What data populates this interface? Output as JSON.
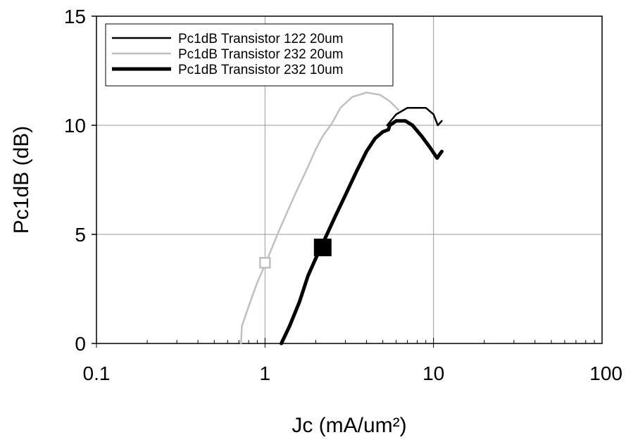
{
  "chart_data": {
    "type": "line",
    "xlabel": "Jc (mA/um²)",
    "ylabel": "Pc1dB (dB)",
    "x_scale": "log",
    "xlim": [
      0.1,
      100
    ],
    "ylim": [
      0,
      15
    ],
    "x_ticks": [
      {
        "value": 0.1,
        "label": "0.1"
      },
      {
        "value": 1,
        "label": "1"
      },
      {
        "value": 10,
        "label": "10"
      },
      {
        "value": 100,
        "label": "100"
      }
    ],
    "y_ticks": [
      {
        "value": 0,
        "label": "0"
      },
      {
        "value": 5,
        "label": "5"
      },
      {
        "value": 10,
        "label": "10"
      },
      {
        "value": 15,
        "label": "15"
      }
    ],
    "grid": true,
    "legend_position": "top-left",
    "series": [
      {
        "name": "Pc1dB Transistor 122 20um",
        "color": "#000000",
        "style": "thin",
        "points": [
          [
            5.3,
            10.0
          ],
          [
            6.0,
            10.5
          ],
          [
            7.0,
            10.8
          ],
          [
            8.0,
            10.8
          ],
          [
            9.0,
            10.8
          ],
          [
            10.0,
            10.5
          ],
          [
            10.6,
            10.0
          ],
          [
            11.2,
            10.2
          ]
        ]
      },
      {
        "name": "Pc1dB Transistor 232 20um",
        "color": "#c0c0c0",
        "style": "thin",
        "points": [
          [
            0.72,
            0.0
          ],
          [
            0.73,
            0.8
          ],
          [
            0.8,
            1.7
          ],
          [
            0.9,
            2.8
          ],
          [
            1.0,
            3.6
          ],
          [
            1.2,
            5.1
          ],
          [
            1.5,
            6.8
          ],
          [
            1.8,
            8.1
          ],
          [
            2.0,
            8.9
          ],
          [
            2.2,
            9.5
          ],
          [
            2.5,
            10.1
          ],
          [
            2.8,
            10.8
          ],
          [
            3.3,
            11.3
          ],
          [
            4.0,
            11.5
          ],
          [
            4.8,
            11.4
          ],
          [
            5.5,
            11.1
          ],
          [
            6.2,
            10.7
          ]
        ],
        "marker": {
          "x": 1.0,
          "y": 3.7,
          "shape": "open-square"
        }
      },
      {
        "name": "Pc1dB Transistor 232 10um",
        "color": "#000000",
        "style": "thick",
        "points": [
          [
            1.25,
            0.0
          ],
          [
            1.4,
            0.8
          ],
          [
            1.6,
            1.9
          ],
          [
            1.8,
            3.1
          ],
          [
            2.0,
            3.9
          ],
          [
            2.3,
            4.9
          ],
          [
            2.6,
            5.8
          ],
          [
            3.0,
            6.8
          ],
          [
            3.5,
            7.9
          ],
          [
            4.0,
            8.8
          ],
          [
            4.5,
            9.4
          ],
          [
            5.0,
            9.7
          ],
          [
            5.4,
            9.8
          ],
          [
            5.5,
            10.0
          ],
          [
            6.0,
            10.2
          ],
          [
            6.8,
            10.2
          ],
          [
            7.5,
            10.0
          ],
          [
            8.5,
            9.5
          ],
          [
            9.5,
            9.0
          ],
          [
            10.5,
            8.5
          ],
          [
            11.2,
            8.8
          ]
        ],
        "marker": {
          "x": 2.2,
          "y": 4.4,
          "shape": "filled-square"
        }
      }
    ]
  }
}
